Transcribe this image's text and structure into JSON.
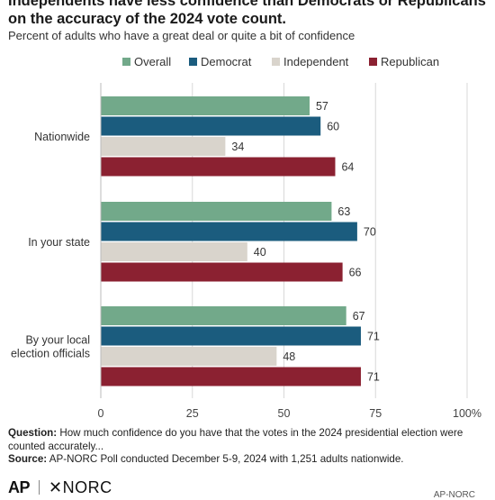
{
  "header": {
    "title": "Independents have less confidence than Democrats or Republicans on the accuracy of the 2024 vote count.",
    "subtitle": "Percent of adults who have a great deal or quite a bit of confidence"
  },
  "colors": {
    "overall": "#72a98a",
    "democrat": "#1b5c7e",
    "independent": "#d9d4cc",
    "republican": "#8b2131",
    "gridline": "#d8d8d8",
    "axis_text": "#444444"
  },
  "chart_data": {
    "type": "bar",
    "orientation": "horizontal",
    "categories": [
      "Nationwide",
      "In your state",
      "By your local election officials"
    ],
    "series": [
      {
        "name": "Overall",
        "values": [
          57,
          63,
          67
        ]
      },
      {
        "name": "Democrat",
        "values": [
          60,
          70,
          71
        ]
      },
      {
        "name": "Independent",
        "values": [
          34,
          40,
          48
        ]
      },
      {
        "name": "Republican",
        "values": [
          64,
          66,
          71
        ]
      }
    ],
    "xlim": [
      0,
      100
    ],
    "x_ticks": [
      "0",
      "25",
      "50",
      "75",
      "100%"
    ],
    "grid": true,
    "legend": "top"
  },
  "footer": {
    "question_label": "Question:",
    "question_text": "How much confidence do you have that the votes in the 2024 presidential election were counted accurately...",
    "source_label": "Source:",
    "source_text": "AP-NORC Poll conducted December 5-9, 2024 with 1,251 adults nationwide.",
    "logo_ap": "AP",
    "logo_norc": "✕NORC",
    "corner_text": "AP-NORC"
  }
}
